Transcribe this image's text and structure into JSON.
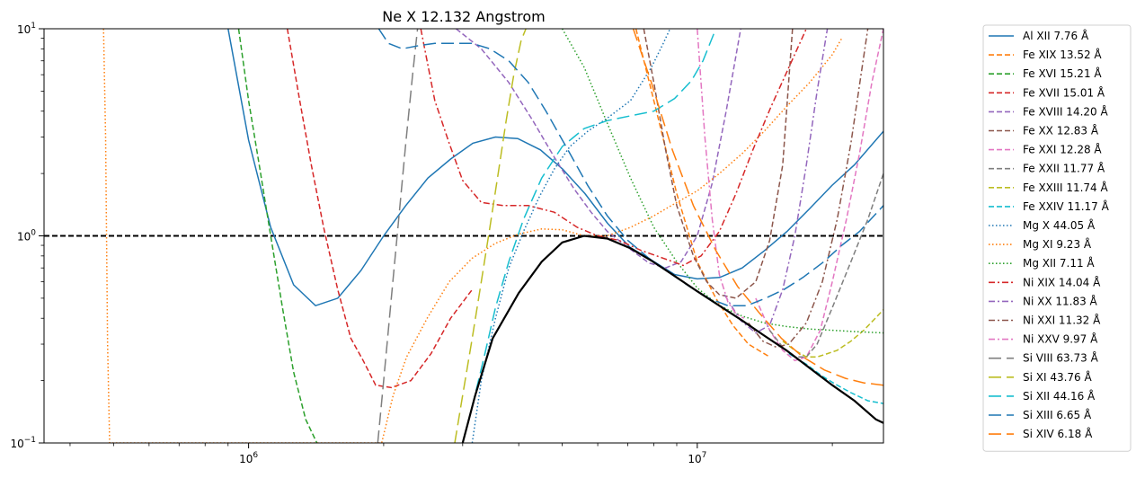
{
  "chart_data": {
    "type": "line",
    "title": "Ne X 12.132 Angstrom",
    "xlabel": "",
    "ylabel": "",
    "x_scale": "log",
    "y_scale": "log",
    "xlim": [
      350000,
      26000000
    ],
    "ylim": [
      0.1,
      10
    ],
    "x_ticks": [
      {
        "value": 1000000,
        "label": "10^6"
      },
      {
        "value": 10000000,
        "label": "10^7"
      }
    ],
    "y_ticks": [
      {
        "value": 0.1,
        "label": "10^-1"
      },
      {
        "value": 1,
        "label": "10^0"
      },
      {
        "value": 10,
        "label": "10^1"
      }
    ],
    "grid": false,
    "legend_position": "outside-right",
    "reference_line": {
      "y": 1,
      "color": "#000000",
      "style": "dashed"
    },
    "envelope": {
      "color": "#000000",
      "x": [
        3000000,
        3200000,
        3500000,
        4000000,
        4500000,
        5000000,
        5600000,
        6300000,
        7100000,
        7900000,
        8900000,
        10000000,
        11200000,
        12600000,
        14100000,
        15800000,
        17800000,
        20000000,
        22400000,
        25000000,
        26000000
      ],
      "y": [
        0.1,
        0.17,
        0.32,
        0.53,
        0.75,
        0.93,
        1.0,
        0.97,
        0.87,
        0.76,
        0.64,
        0.54,
        0.46,
        0.39,
        0.33,
        0.28,
        0.23,
        0.19,
        0.16,
        0.13,
        0.125
      ]
    },
    "series": [
      {
        "name": "Al XII 7.76 Å",
        "color": "#1f77b4",
        "style": "solid",
        "x": [
          900000,
          1000000,
          1120000,
          1260000,
          1410000,
          1580000,
          1780000,
          2000000,
          2240000,
          2510000,
          2820000,
          3160000,
          3550000,
          3980000,
          4470000,
          5010000,
          5620000,
          6310000,
          7080000,
          7940000,
          8910000,
          10000000,
          11220000,
          12590000,
          14130000,
          15850000,
          17780000,
          19950000,
          22390000,
          26000000
        ],
        "y": [
          10,
          2.9,
          1.1,
          0.58,
          0.46,
          0.5,
          0.68,
          1.0,
          1.4,
          1.9,
          2.35,
          2.8,
          3.0,
          2.95,
          2.6,
          2.1,
          1.6,
          1.15,
          0.88,
          0.76,
          0.65,
          0.62,
          0.63,
          0.7,
          0.85,
          1.05,
          1.35,
          1.75,
          2.2,
          3.2
        ]
      },
      {
        "name": "Fe XIX 13.52 Å",
        "color": "#ff7f0e",
        "style": "dashed",
        "x": [
          7300000,
          8000000,
          9000000,
          10000000,
          11000000,
          12000000,
          13000000,
          14500000
        ],
        "y": [
          10,
          4.5,
          1.6,
          0.75,
          0.5,
          0.37,
          0.3,
          0.26
        ]
      },
      {
        "name": "Fe XVI 15.21 Å",
        "color": "#2ca02c",
        "style": "dashed",
        "x": [
          950000,
          1000000,
          1060000,
          1120000,
          1190000,
          1260000,
          1340000,
          1420000
        ],
        "y": [
          10,
          4.5,
          2.1,
          1.0,
          0.45,
          0.22,
          0.13,
          0.1
        ]
      },
      {
        "name": "Fe XVII 15.01 Å",
        "color": "#d62728",
        "style": "dashed",
        "x": [
          1220000,
          1300000,
          1380000,
          1470000,
          1580000,
          1690000,
          1800000,
          1920000,
          2080000,
          2300000,
          2550000,
          2820000,
          3150000
        ],
        "y": [
          10,
          4.5,
          2.2,
          1.1,
          0.55,
          0.32,
          0.25,
          0.19,
          0.185,
          0.2,
          0.27,
          0.4,
          0.55
        ]
      },
      {
        "name": "Fe XVIII 14.20 Å",
        "color": "#9467bd",
        "style": "dashed",
        "x": [
          2900000,
          3300000,
          3800000,
          4300000,
          4800000,
          5300000,
          5800000,
          6300000,
          7000000,
          7800000,
          8500000,
          9200000,
          10000000,
          10800000,
          11600000,
          12500000
        ],
        "y": [
          10,
          8,
          5.5,
          3.6,
          2.4,
          1.7,
          1.3,
          1.05,
          0.88,
          0.74,
          0.7,
          0.75,
          1.0,
          1.8,
          4.0,
          10
        ]
      },
      {
        "name": "Fe XX 12.83 Å",
        "color": "#8c564b",
        "style": "dashed",
        "x": [
          7600000,
          8000000,
          8500000,
          9000000,
          9800000,
          10500000,
          11200000,
          12200000,
          13500000,
          14500000,
          15500000,
          16300000
        ],
        "y": [
          10,
          5.5,
          2.6,
          1.4,
          0.8,
          0.6,
          0.52,
          0.5,
          0.6,
          0.95,
          2.2,
          10
        ]
      },
      {
        "name": "Fe XXI 12.28 Å",
        "color": "#e377c2",
        "style": "dashed",
        "x": [
          13500000,
          14500000,
          15500000,
          16500000,
          17500000,
          18800000,
          20000000,
          21500000,
          23000000,
          24500000,
          26000000
        ],
        "y": [
          0.5,
          0.35,
          0.28,
          0.25,
          0.26,
          0.35,
          0.6,
          1.2,
          2.5,
          5.5,
          10
        ]
      },
      {
        "name": "Fe XXII 11.77 Å",
        "color": "#7f7f7f",
        "style": "dashed",
        "x": [
          14500000,
          15500000,
          16500000,
          17500000,
          18500000,
          20000000,
          22000000,
          24000000,
          26000000
        ],
        "y": [
          0.35,
          0.29,
          0.26,
          0.26,
          0.3,
          0.45,
          0.75,
          1.2,
          2.0
        ]
      },
      {
        "name": "Fe XXIII 11.74 Å",
        "color": "#bcbd22",
        "style": "dashed",
        "x": [
          15500000,
          16500000,
          17500000,
          18500000,
          19500000,
          20500000,
          22000000,
          23500000,
          26000000
        ],
        "y": [
          0.31,
          0.28,
          0.26,
          0.26,
          0.27,
          0.28,
          0.31,
          0.35,
          0.44
        ]
      },
      {
        "name": "Fe XXIV 11.17 Å",
        "color": "#17becf",
        "style": "dashed",
        "x": [
          16000000,
          17500000,
          19000000,
          20500000,
          22000000,
          24000000,
          26000000
        ],
        "y": [
          0.27,
          0.24,
          0.21,
          0.19,
          0.175,
          0.16,
          0.155
        ]
      },
      {
        "name": "Mg X 44.05 Å",
        "color": "#1f77b4",
        "style": "dotted",
        "x": [
          3150000,
          3300000,
          3550000,
          3800000,
          4100000,
          4450000,
          4800000,
          5200000,
          5700000,
          6300000,
          7100000,
          7900000,
          8400000,
          8700000
        ],
        "y": [
          0.1,
          0.2,
          0.4,
          0.7,
          1.05,
          1.55,
          2.1,
          2.7,
          3.2,
          3.7,
          4.5,
          6.5,
          8.5,
          10
        ]
      },
      {
        "name": "Mg XI 9.23 Å",
        "color": "#ff7f0e",
        "style": "dotted",
        "x": [
          475000,
          480000,
          485000,
          490000,
          1980000,
          2100000,
          2250000,
          2500000,
          2800000,
          3150000,
          3550000,
          4000000,
          4500000,
          5000000,
          5600000,
          6300000,
          7100000,
          8000000,
          9000000,
          10000000,
          11200000,
          12600000,
          14100000,
          15800000,
          17800000,
          20000000,
          21000000
        ],
        "y": [
          10,
          3,
          0.3,
          0.1,
          0.1,
          0.17,
          0.26,
          0.4,
          0.6,
          0.78,
          0.92,
          1.02,
          1.08,
          1.07,
          1.0,
          1.0,
          1.1,
          1.25,
          1.45,
          1.65,
          2.0,
          2.5,
          3.2,
          4.2,
          5.5,
          7.5,
          9
        ]
      },
      {
        "name": "Mg XII 7.11 Å",
        "color": "#2ca02c",
        "style": "dotted",
        "x": [
          5000000,
          5600000,
          6300000,
          7100000,
          8000000,
          9000000,
          10000000,
          11200000,
          12600000,
          14100000,
          15800000,
          17800000,
          20000000,
          22400000,
          26000000
        ],
        "y": [
          10,
          6.5,
          3.5,
          1.9,
          1.1,
          0.75,
          0.56,
          0.46,
          0.41,
          0.38,
          0.365,
          0.355,
          0.35,
          0.345,
          0.34
        ]
      },
      {
        "name": "Ni XIX 14.04 Å",
        "color": "#d62728",
        "style": "dashdot",
        "x": [
          2420000,
          2600000,
          2800000,
          3000000,
          3300000,
          3700000,
          4200000,
          4800000,
          5400000,
          6000000,
          6700000,
          7500000,
          8400000,
          9300000,
          10200000,
          11200000,
          12200000,
          13300000,
          14600000,
          16000000,
          17500000
        ],
        "y": [
          10,
          4.5,
          2.8,
          1.85,
          1.45,
          1.4,
          1.4,
          1.3,
          1.1,
          1.0,
          0.95,
          0.85,
          0.78,
          0.72,
          0.8,
          1.05,
          1.6,
          2.6,
          4.2,
          6.5,
          10
        ]
      },
      {
        "name": "Ni XX 11.83 Å",
        "color": "#9467bd",
        "style": "dashdot",
        "x": [
          11500000,
          12500000,
          13500000,
          14500000,
          15500000,
          16500000,
          17500000,
          18500000,
          19500000
        ],
        "y": [
          0.52,
          0.39,
          0.34,
          0.37,
          0.55,
          1.0,
          2.2,
          5.0,
          10
        ]
      },
      {
        "name": "Ni XXI 11.32 Å",
        "color": "#8c564b",
        "style": "dashdot",
        "x": [
          13000000,
          14000000,
          15000000,
          16000000,
          17500000,
          19000000,
          20500000,
          22000000,
          24000000
        ],
        "y": [
          0.38,
          0.31,
          0.29,
          0.3,
          0.38,
          0.6,
          1.2,
          2.8,
          10
        ]
      },
      {
        "name": "Ni XXV 9.97 Å",
        "color": "#e377c2",
        "style": "dashdot",
        "x": [
          10000000,
          10400000,
          10800000,
          11200000,
          11700000,
          12200000,
          12700000
        ],
        "y": [
          10,
          3,
          1.2,
          0.65,
          0.48,
          0.42,
          0.4
        ]
      },
      {
        "name": "Si VIII 63.73 Å",
        "color": "#7f7f7f",
        "style": "longdash",
        "x": [
          1940000,
          2000000,
          2080000,
          2160000,
          2240000,
          2320000,
          2380000
        ],
        "y": [
          0.1,
          0.2,
          0.5,
          1.2,
          2.8,
          6.0,
          10
        ]
      },
      {
        "name": "Si XI 43.76 Å",
        "color": "#bcbd22",
        "style": "longdash",
        "x": [
          2880000,
          3000000,
          3150000,
          3300000,
          3450000,
          3600000,
          3750000,
          3900000,
          4050000,
          4150000
        ],
        "y": [
          0.1,
          0.17,
          0.32,
          0.6,
          1.1,
          2.0,
          3.6,
          6.0,
          8.8,
          10
        ]
      },
      {
        "name": "Si XII 44.16 Å",
        "color": "#17becf",
        "style": "longdash",
        "x": [
          3000000,
          3150000,
          3350000,
          3550000,
          3800000,
          4100000,
          4500000,
          5000000,
          5600000,
          6300000,
          7100000,
          8000000,
          8900000,
          9700000,
          10300000,
          11000000
        ],
        "y": [
          0.1,
          0.15,
          0.26,
          0.45,
          0.75,
          1.2,
          1.9,
          2.7,
          3.3,
          3.6,
          3.8,
          4.0,
          4.6,
          5.6,
          7.0,
          10
        ]
      },
      {
        "name": "Si XIII 6.65 Å",
        "color": "#1f77b4",
        "style": "longdash",
        "x": [
          1950000,
          2050000,
          2200000,
          2400000,
          2600000,
          2850000,
          3150000,
          3450000,
          3800000,
          4200000,
          4600000,
          5100000,
          5700000,
          6300000,
          7000000,
          7800000,
          8700000,
          9600000,
          10600000,
          11700000,
          12900000,
          14200000,
          15600000,
          17200000,
          19000000,
          21000000,
          23000000,
          26000000
        ],
        "y": [
          10,
          8.5,
          8.0,
          8.3,
          8.5,
          8.5,
          8.5,
          8.0,
          7.0,
          5.5,
          4.0,
          2.7,
          1.75,
          1.25,
          0.95,
          0.78,
          0.66,
          0.57,
          0.5,
          0.46,
          0.46,
          0.5,
          0.55,
          0.63,
          0.74,
          0.9,
          1.05,
          1.4
        ]
      },
      {
        "name": "Si XIV 6.18 Å",
        "color": "#ff7f0e",
        "style": "longdash",
        "x": [
          7200000,
          7900000,
          8800000,
          9800000,
          11000000,
          12300000,
          13800000,
          15400000,
          17200000,
          19200000,
          21400000,
          23500000,
          26000000
        ],
        "y": [
          10,
          5.5,
          2.6,
          1.4,
          0.85,
          0.57,
          0.42,
          0.32,
          0.26,
          0.225,
          0.205,
          0.195,
          0.19
        ]
      }
    ]
  }
}
